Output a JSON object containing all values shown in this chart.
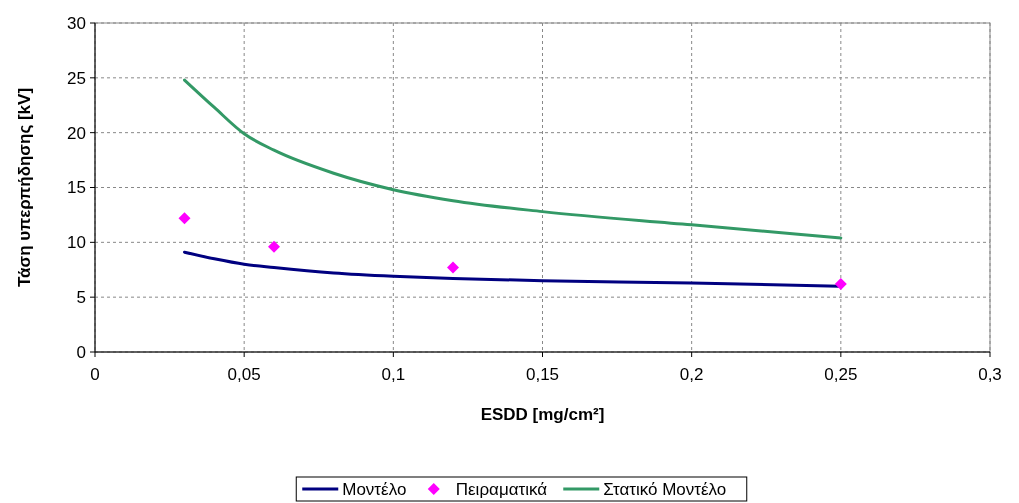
{
  "chart_data": {
    "type": "line",
    "xlabel": "ESDD [mg/cm²]",
    "ylabel": "Τάση υπερπήδησης [kV]",
    "xlim": [
      0,
      0.3
    ],
    "ylim": [
      0,
      30
    ],
    "xticks": [
      0,
      {
        "value": 0.05,
        "label": "0,05"
      },
      {
        "value": 0.1,
        "label": "0,1"
      },
      {
        "value": 0.15,
        "label": "0,15"
      },
      {
        "value": 0.2,
        "label": "0,2"
      },
      {
        "value": 0.25,
        "label": "0,25"
      },
      {
        "value": 0.3,
        "label": "0,3"
      }
    ],
    "yticks": [
      0,
      5,
      10,
      15,
      20,
      25,
      30
    ],
    "grid": true,
    "legend": "bottom",
    "line_style": "solid",
    "series": [
      {
        "name": "Μοντέλο",
        "color": "#000080",
        "marker": "none",
        "x": [
          0.03,
          0.04,
          0.05,
          0.06,
          0.08,
          0.1,
          0.12,
          0.15,
          0.2,
          0.25
        ],
        "values": [
          9.1,
          8.5,
          8.0,
          7.7,
          7.2,
          6.9,
          6.7,
          6.5,
          6.3,
          6.0
        ]
      },
      {
        "name": "Πειραματικά",
        "color": "#ff00ff",
        "type": "scatter",
        "marker": "diamond",
        "x": [
          0.03,
          0.06,
          0.12,
          0.25
        ],
        "values": [
          12.2,
          9.6,
          7.7,
          6.2
        ]
      },
      {
        "name": "Στατικό Μοντέλο",
        "color": "#339966",
        "marker": "none",
        "x": [
          0.03,
          0.04,
          0.05,
          0.06,
          0.08,
          0.1,
          0.12,
          0.15,
          0.2,
          0.25
        ],
        "values": [
          24.8,
          22.3,
          19.9,
          18.4,
          16.3,
          14.8,
          13.8,
          12.8,
          11.6,
          10.4
        ]
      }
    ]
  }
}
